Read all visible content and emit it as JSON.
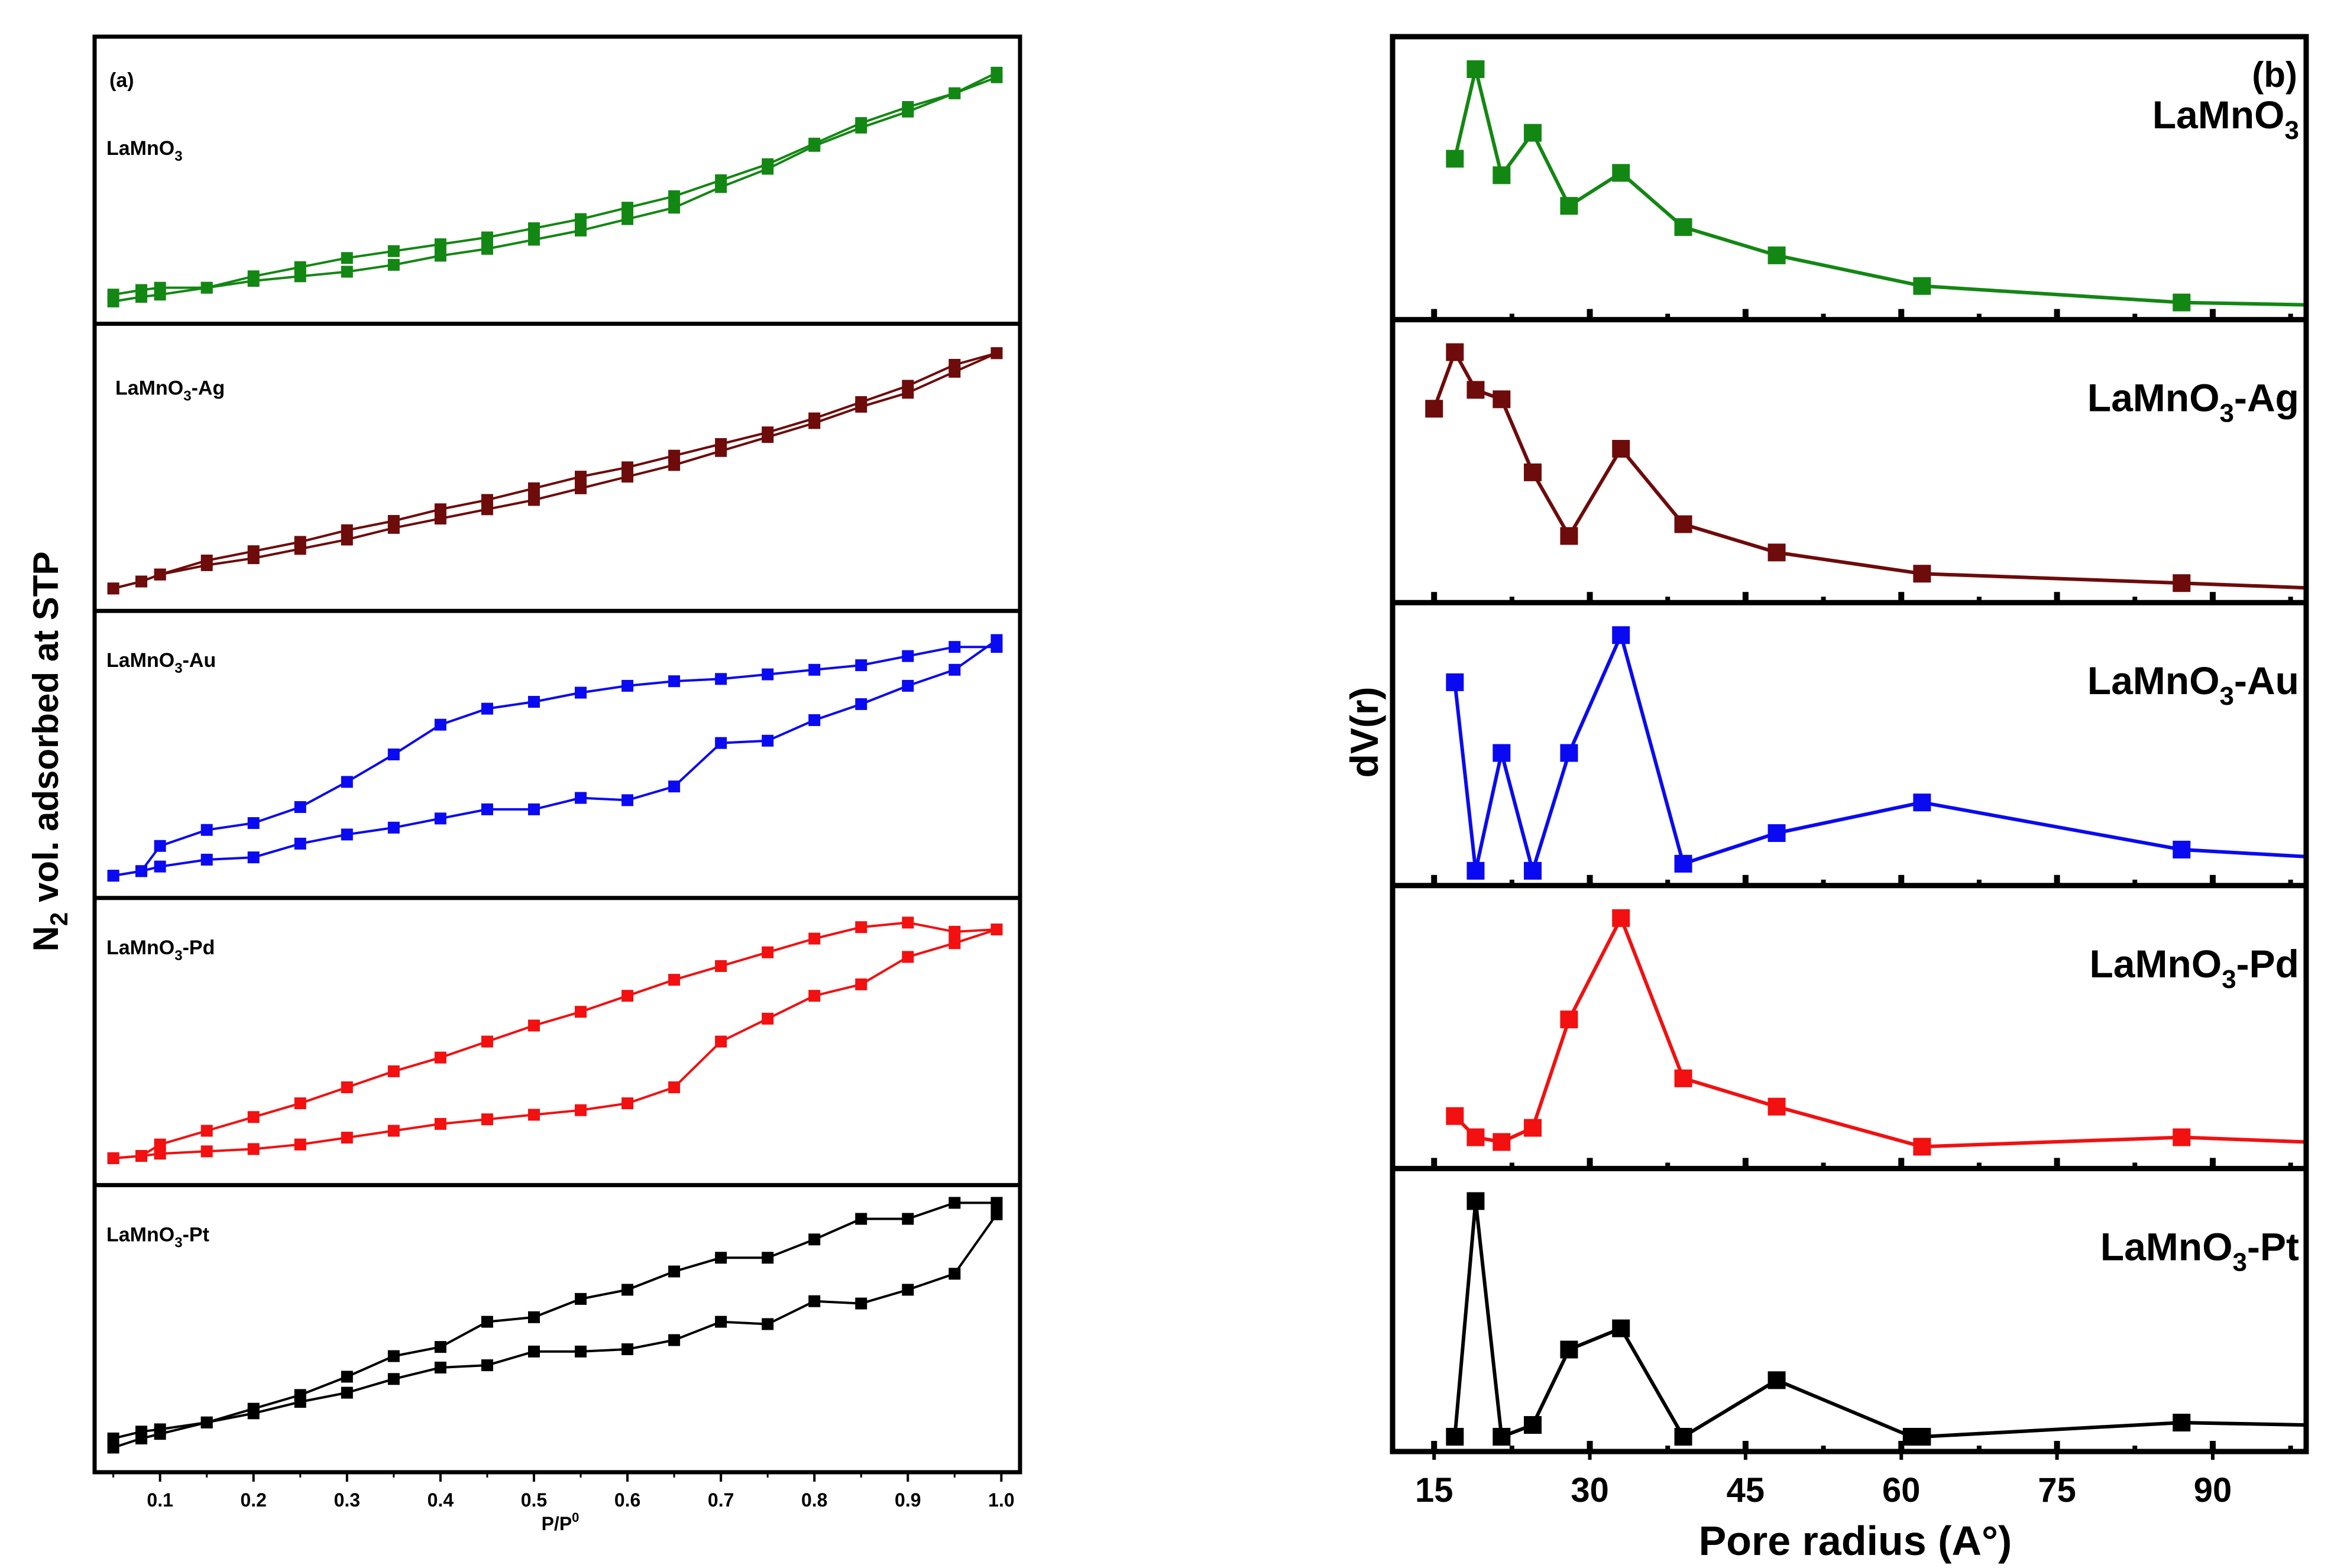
{
  "chart_data": [
    {
      "type": "line",
      "title": "(a)",
      "xlabel_main": "P/P",
      "xlabel_sup": "0",
      "ylabel_pre": "N",
      "ylabel_sub": "2",
      "ylabel_post": " vol. adsorbed at STP",
      "xlim": [
        0.03,
        1.02
      ],
      "xticks": [
        0.1,
        0.2,
        0.3,
        0.4,
        0.5,
        0.6,
        0.7,
        0.8,
        0.9,
        1.0
      ],
      "xtick_labels": [
        "0.1",
        "0.2",
        "0.3",
        "0.4",
        "0.5",
        "0.6",
        "0.7",
        "0.8",
        "0.9",
        "1.0"
      ],
      "x_ads": [
        0.05,
        0.08,
        0.1,
        0.15,
        0.2,
        0.25,
        0.3,
        0.35,
        0.4,
        0.45,
        0.5,
        0.55,
        0.6,
        0.65,
        0.7,
        0.75,
        0.8,
        0.85,
        0.9,
        0.95,
        0.995
      ],
      "x_des": [
        0.05,
        0.08,
        0.1,
        0.15,
        0.2,
        0.25,
        0.3,
        0.35,
        0.4,
        0.45,
        0.5,
        0.55,
        0.6,
        0.65,
        0.7,
        0.75,
        0.8,
        0.85,
        0.9,
        0.95,
        0.995
      ],
      "series": [
        {
          "name_pre": "LaMnO",
          "name_sub": "3",
          "name_post": "",
          "color": "#138713",
          "ylim": [
            0,
            110
          ],
          "adsorption": [
            2,
            4,
            5,
            8,
            11,
            13,
            15,
            18,
            22,
            25,
            29,
            33,
            38,
            43,
            52,
            60,
            70,
            78,
            85,
            93,
            102
          ],
          "desorption": [
            5,
            7,
            8,
            8,
            13,
            17,
            21,
            24,
            27,
            30,
            34,
            38,
            43,
            48,
            55,
            62,
            71,
            80,
            87,
            93,
            100
          ]
        },
        {
          "name_pre": "LaMnO",
          "name_sub": "3",
          "name_post": "-Ag",
          "color": "#6e0b0b",
          "ylim": [
            0,
            108
          ],
          "adsorption": [
            2,
            5,
            8,
            12,
            15,
            19,
            23,
            28,
            32,
            36,
            40,
            45,
            50,
            55,
            61,
            67,
            73,
            80,
            86,
            95,
            103
          ],
          "desorption": [
            2,
            5,
            8,
            14,
            18,
            22,
            27,
            31,
            36,
            40,
            45,
            50,
            54,
            59,
            64,
            69,
            75,
            82,
            89,
            98,
            103
          ]
        },
        {
          "name_pre": "LaMnO",
          "name_sub": "3",
          "name_post": "-Au",
          "color": "#0a0af2",
          "ylim": [
            0,
            110
          ],
          "adsorption": [
            2,
            4,
            6,
            9,
            10,
            16,
            20,
            23,
            27,
            31,
            31,
            36,
            35,
            41,
            60,
            61,
            70,
            77,
            85,
            92,
            105
          ],
          "desorption": [
            2,
            4,
            15,
            22,
            25,
            32,
            43,
            55,
            68,
            75,
            78,
            82,
            85,
            87,
            88,
            90,
            92,
            94,
            98,
            102,
            102
          ]
        },
        {
          "name_pre": "LaMnO",
          "name_sub": "3",
          "name_post": "-Pd",
          "color": "#f21010",
          "ylim": [
            0,
            110
          ],
          "adsorption": [
            4,
            5,
            6,
            7,
            8,
            10,
            13,
            16,
            19,
            21,
            23,
            25,
            28,
            35,
            55,
            65,
            75,
            80,
            92,
            98,
            104
          ],
          "desorption": [
            4,
            5,
            10,
            16,
            22,
            28,
            35,
            42,
            48,
            55,
            62,
            68,
            75,
            82,
            88,
            94,
            100,
            105,
            107,
            103,
            104
          ]
        },
        {
          "name_pre": "LaMnO",
          "name_sub": "3",
          "name_post": "-Pt",
          "color": "#000000",
          "ylim": [
            0,
            110
          ],
          "adsorption": [
            3,
            7,
            9,
            14,
            18,
            23,
            27,
            33,
            38,
            39,
            45,
            45,
            46,
            50,
            58,
            57,
            67,
            66,
            72,
            79,
            105
          ],
          "desorption": [
            7,
            10,
            11,
            14,
            20,
            26,
            34,
            43,
            47,
            58,
            60,
            68,
            72,
            80,
            86,
            86,
            94,
            103,
            103,
            110,
            110
          ]
        }
      ]
    },
    {
      "type": "line",
      "title": "(b)",
      "xlabel": "Pore radius (A°)",
      "ylabel": "dV(r)",
      "xlim": [
        11,
        99
      ],
      "xticks": [
        15,
        30,
        45,
        60,
        75,
        90
      ],
      "xtick_labels": [
        "15",
        "30",
        "45",
        "60",
        "75",
        "90"
      ],
      "series": [
        {
          "name_pre": "LaMnO",
          "name_sub": "3",
          "name_post": "",
          "color": "#138713",
          "ylim": [
            0,
            100
          ],
          "x": [
            17,
            19,
            21.5,
            24.5,
            28,
            33,
            39,
            48,
            62,
            87,
            99
          ],
          "y": [
            62,
            100,
            55,
            73,
            42,
            56,
            33,
            21,
            8,
            1,
            0
          ]
        },
        {
          "name_pre": "LaMnO",
          "name_sub": "3",
          "name_post": "-Ag",
          "color": "#6e0b0b",
          "ylim": [
            0,
            100
          ],
          "x": [
            15,
            17,
            19,
            21.5,
            24.5,
            28,
            33,
            39,
            48,
            62,
            87,
            99
          ],
          "y": [
            76,
            100,
            84,
            80,
            49,
            22,
            59,
            27,
            15,
            6,
            2,
            0
          ]
        },
        {
          "name_pre": "LaMnO",
          "name_sub": "3",
          "name_post": "-Au",
          "color": "#0a0af2",
          "ylim": [
            0,
            100
          ],
          "x": [
            17,
            19,
            21.5,
            24.5,
            28,
            33,
            39,
            48,
            62,
            87,
            99
          ],
          "y": [
            80,
            0,
            50,
            0,
            50,
            100,
            3,
            16,
            29,
            9,
            6
          ]
        },
        {
          "name_pre": "LaMnO",
          "name_sub": "3",
          "name_post": "-Pd",
          "color": "#f21010",
          "ylim": [
            0,
            100
          ],
          "x": [
            17,
            19,
            21.5,
            24.5,
            28,
            33,
            39,
            48,
            62,
            87,
            99
          ],
          "y": [
            16,
            7,
            5,
            11,
            57,
            100,
            32,
            20,
            3,
            7,
            5
          ]
        },
        {
          "name_pre": "LaMnO",
          "name_sub": "3",
          "name_post": "-Pt",
          "color": "#000000",
          "ylim": [
            0,
            100
          ],
          "x": [
            17,
            19,
            21.5,
            24.5,
            28,
            33,
            39,
            48,
            61,
            62,
            87,
            99
          ],
          "y": [
            0,
            100,
            0,
            5,
            37,
            46,
            0,
            24,
            0,
            0,
            6,
            5
          ]
        }
      ]
    }
  ]
}
